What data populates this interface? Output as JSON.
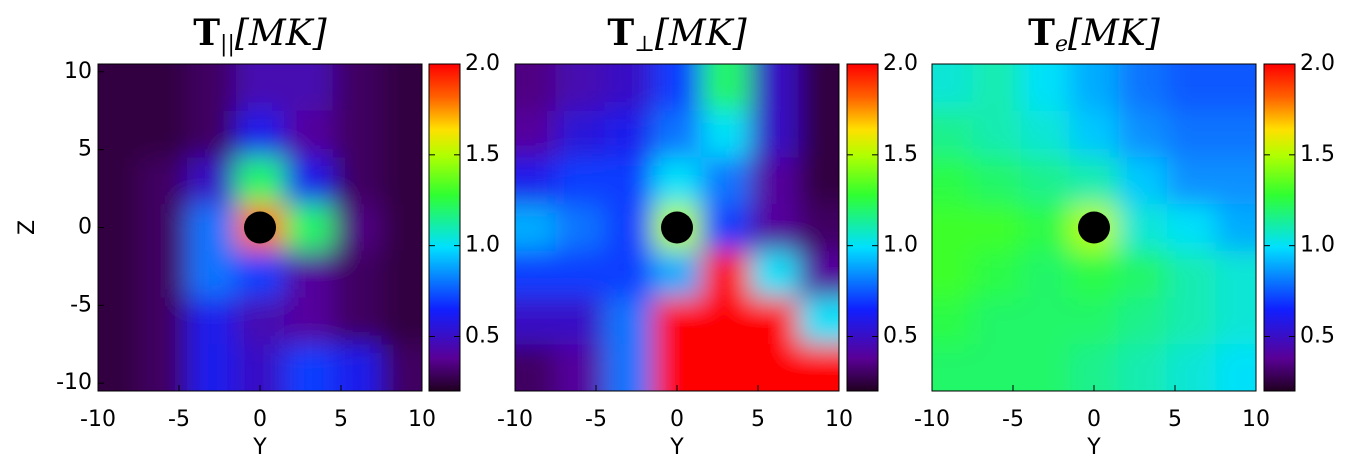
{
  "chart_data": [
    {
      "type": "heatmap",
      "title": {
        "symbol": "T",
        "subscript": "||",
        "unit": "[MK]"
      },
      "x_label": "Y",
      "y_label": "Z",
      "xlim": [
        -10,
        10
      ],
      "ylim": [
        -10.5,
        10.5
      ],
      "xticks": [
        -10,
        -5,
        0,
        5,
        10
      ],
      "yticks": [
        10,
        5,
        0,
        -5,
        -10
      ],
      "clim": [
        0.2,
        2.0
      ],
      "cticks": [
        0.5,
        {
          "value": 1,
          "label": "1.0"
        },
        1.5,
        {
          "value": 2,
          "label": "2.0"
        }
      ],
      "colormap": "rainbow",
      "x": [
        -9,
        -6,
        -3,
        0,
        3,
        6,
        9
      ],
      "y": [
        9,
        6,
        3,
        0,
        -3,
        -6,
        -9
      ],
      "values": [
        [
          0.25,
          0.25,
          0.3,
          0.45,
          0.45,
          0.3,
          0.25
        ],
        [
          0.25,
          0.25,
          0.3,
          0.6,
          0.4,
          0.3,
          0.25
        ],
        [
          0.25,
          0.3,
          0.5,
          1.2,
          0.6,
          0.3,
          0.25
        ],
        [
          0.25,
          0.3,
          0.8,
          1.8,
          1.2,
          0.35,
          0.25
        ],
        [
          0.25,
          0.3,
          0.8,
          0.7,
          0.4,
          0.3,
          0.25
        ],
        [
          0.25,
          0.3,
          0.6,
          0.45,
          0.4,
          0.3,
          0.25
        ],
        [
          0.25,
          0.3,
          0.6,
          0.5,
          0.7,
          0.6,
          0.3
        ]
      ]
    },
    {
      "type": "heatmap",
      "title": {
        "symbol": "T",
        "subscript": "⊥",
        "unit": "[MK]"
      },
      "x_label": "Y",
      "xlim": [
        -10,
        10
      ],
      "ylim": [
        -10.5,
        10.5
      ],
      "xticks": [
        -10,
        -5,
        0,
        5,
        10
      ],
      "clim": [
        0.2,
        2.0
      ],
      "cticks": [
        0.5,
        {
          "value": 1,
          "label": "1.0"
        },
        1.5,
        {
          "value": 2,
          "label": "2.0"
        }
      ],
      "colormap": "rainbow",
      "x": [
        -9,
        -6,
        -3,
        0,
        3,
        6,
        9
      ],
      "y": [
        9,
        6,
        3,
        0,
        -3,
        -6,
        -9
      ],
      "values": [
        [
          0.35,
          0.45,
          0.5,
          0.7,
          1.2,
          0.5,
          0.25
        ],
        [
          0.4,
          0.55,
          0.6,
          0.8,
          1.0,
          0.5,
          0.25
        ],
        [
          0.6,
          0.7,
          0.7,
          1.0,
          0.8,
          0.4,
          0.25
        ],
        [
          0.9,
          0.8,
          0.7,
          1.5,
          0.7,
          0.4,
          0.3
        ],
        [
          0.7,
          0.7,
          0.7,
          0.9,
          2.0,
          1.0,
          0.4
        ],
        [
          0.5,
          0.5,
          0.8,
          2.0,
          2.0,
          2.0,
          1.0
        ],
        [
          0.3,
          0.4,
          0.8,
          2.0,
          2.0,
          2.0,
          2.0
        ]
      ]
    },
    {
      "type": "heatmap",
      "title": {
        "symbol": "T",
        "subscript": "e",
        "unit": "[MK]"
      },
      "x_label": "Y",
      "xlim": [
        -10,
        10
      ],
      "ylim": [
        -10.5,
        10.5
      ],
      "xticks": [
        -10,
        -5,
        0,
        5,
        10
      ],
      "clim": [
        0.2,
        2.0
      ],
      "cticks": [
        0.5,
        {
          "value": 1,
          "label": "1.0"
        },
        1.5,
        {
          "value": 2,
          "label": "2.0"
        }
      ],
      "colormap": "rainbow",
      "x": [
        -9,
        -6,
        -3,
        0,
        3,
        6,
        9
      ],
      "y": [
        9,
        6,
        3,
        0,
        -3,
        -6,
        -9
      ],
      "values": [
        [
          1.05,
          1.1,
          1.0,
          0.9,
          0.8,
          0.75,
          0.75
        ],
        [
          1.15,
          1.1,
          1.05,
          0.95,
          0.85,
          0.8,
          0.8
        ],
        [
          1.25,
          1.2,
          1.15,
          1.1,
          0.95,
          0.85,
          0.85
        ],
        [
          1.3,
          1.3,
          1.25,
          1.5,
          1.05,
          1.0,
          0.9
        ],
        [
          1.3,
          1.25,
          1.2,
          1.25,
          1.2,
          1.1,
          1.05
        ],
        [
          1.25,
          1.2,
          1.2,
          1.2,
          1.15,
          1.1,
          1.05
        ],
        [
          1.2,
          1.2,
          1.2,
          1.15,
          1.1,
          1.05,
          1.0
        ]
      ]
    }
  ]
}
